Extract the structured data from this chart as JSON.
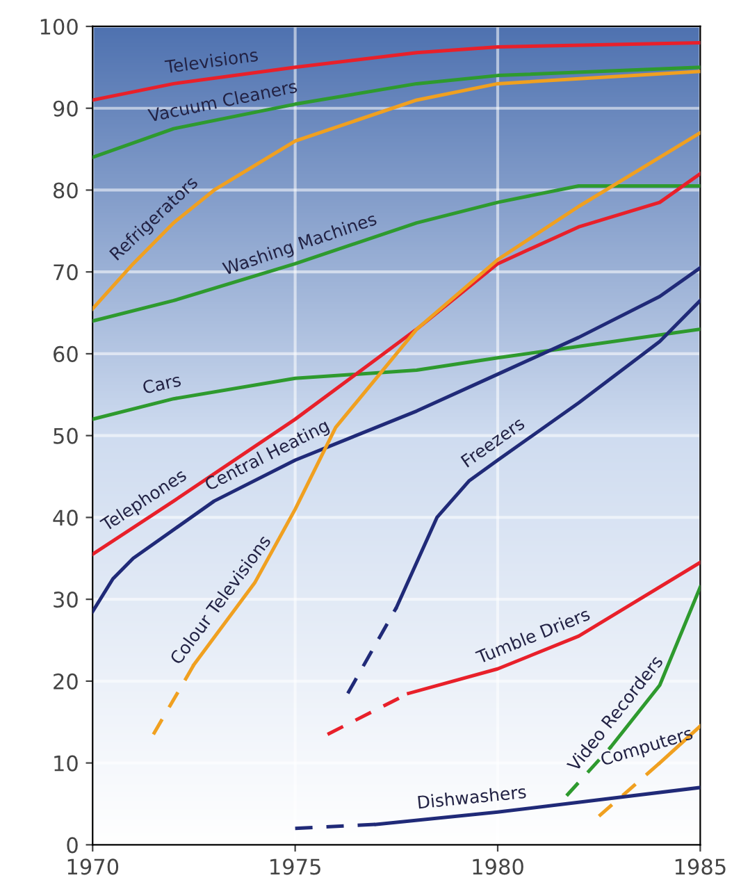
{
  "chart_data": {
    "type": "line",
    "xlim": [
      1970,
      1985
    ],
    "ylim": [
      0,
      100
    ],
    "xticks": [
      1970,
      1975,
      1980,
      1985
    ],
    "yticks": [
      0,
      10,
      20,
      30,
      40,
      50,
      60,
      70,
      80,
      90,
      100
    ],
    "grid": true,
    "legend": false,
    "line_style": "solid",
    "series": [
      {
        "name": "Televisions",
        "color": "#e8202a",
        "x": [
          1970,
          1972,
          1975,
          1978,
          1980,
          1985
        ],
        "values": [
          91,
          93,
          95,
          96.8,
          97.5,
          98
        ]
      },
      {
        "name": "Vacuum Cleaners",
        "color": "#2e9a2e",
        "x": [
          1970,
          1972,
          1975,
          1978,
          1980,
          1985
        ],
        "values": [
          84,
          87.5,
          90.5,
          93,
          94,
          95
        ]
      },
      {
        "name": "Refrigerators",
        "color": "#f0a020",
        "x": [
          1970,
          1971,
          1972,
          1973,
          1975,
          1978,
          1980,
          1985
        ],
        "values": [
          65.5,
          71,
          76,
          80,
          86,
          91,
          93,
          94.5
        ]
      },
      {
        "name": "Washing Machines",
        "color": "#2e9a2e",
        "x": [
          1970,
          1972,
          1975,
          1978,
          1980,
          1982,
          1985
        ],
        "values": [
          64,
          66.5,
          71,
          76,
          78.5,
          80.5,
          80.5
        ]
      },
      {
        "name": "Cars",
        "color": "#2e9a2e",
        "x": [
          1970,
          1972,
          1975,
          1978,
          1980,
          1985
        ],
        "values": [
          52,
          54.5,
          57,
          58,
          59.5,
          63
        ]
      },
      {
        "name": "Telephones",
        "color": "#e8202a",
        "x": [
          1970,
          1972,
          1975,
          1978,
          1980,
          1982,
          1984,
          1985
        ],
        "values": [
          35.5,
          42,
          52,
          63,
          71,
          75.5,
          78.5,
          82
        ]
      },
      {
        "name": "Central Heating",
        "color": "#202a78",
        "x": [
          1970,
          1970.5,
          1971,
          1973,
          1975,
          1978,
          1980,
          1982,
          1984,
          1985
        ],
        "values": [
          28.5,
          32.5,
          35,
          42,
          47,
          53,
          57.5,
          62,
          67,
          70.5
        ]
      },
      {
        "color": "#f0a020",
        "line_style": "dashed",
        "x": [
          1971.5,
          1972.5
        ],
        "values": [
          13.5,
          22
        ]
      },
      {
        "name": "Colour Televisions",
        "color": "#f0a020",
        "x": [
          1972.5,
          1974,
          1975,
          1976,
          1978,
          1980,
          1982,
          1985
        ],
        "values": [
          22,
          32,
          41,
          51,
          63,
          71.5,
          78,
          87
        ]
      },
      {
        "color": "#202a78",
        "line_style": "dashed",
        "x": [
          1976.3,
          1977.5
        ],
        "values": [
          18.5,
          29
        ]
      },
      {
        "name": "Freezers",
        "color": "#202a78",
        "x": [
          1977.5,
          1978.5,
          1979.3,
          1980,
          1982,
          1984,
          1985
        ],
        "values": [
          29,
          40,
          44.5,
          47,
          54,
          61.5,
          66.5
        ]
      },
      {
        "color": "#e8202a",
        "line_style": "dashed",
        "x": [
          1975.8,
          1977.8
        ],
        "values": [
          13.5,
          18.5
        ]
      },
      {
        "name": "Tumble Driers",
        "color": "#e8202a",
        "x": [
          1977.8,
          1980,
          1982,
          1985
        ],
        "values": [
          18.5,
          21.5,
          25.5,
          34.5
        ]
      },
      {
        "color": "#2e9a2e",
        "line_style": "dashed",
        "x": [
          1981.7,
          1982.8
        ],
        "values": [
          6,
          12
        ]
      },
      {
        "name": "Video Recorders",
        "color": "#2e9a2e",
        "x": [
          1982.8,
          1984,
          1985
        ],
        "values": [
          12,
          19.5,
          31.5
        ]
      },
      {
        "color": "#f0a020",
        "line_style": "dashed",
        "x": [
          1982.5,
          1984
        ],
        "values": [
          3.5,
          10
        ]
      },
      {
        "name": "Computers",
        "color": "#f0a020",
        "x": [
          1984,
          1985
        ],
        "values": [
          10,
          14.5
        ]
      },
      {
        "color": "#202a78",
        "line_style": "dashed",
        "x": [
          1975,
          1977
        ],
        "values": [
          2,
          2.5
        ]
      },
      {
        "name": "Dishwashers",
        "color": "#202a78",
        "x": [
          1977,
          1980,
          1985
        ],
        "values": [
          2.5,
          4,
          7
        ]
      }
    ]
  }
}
